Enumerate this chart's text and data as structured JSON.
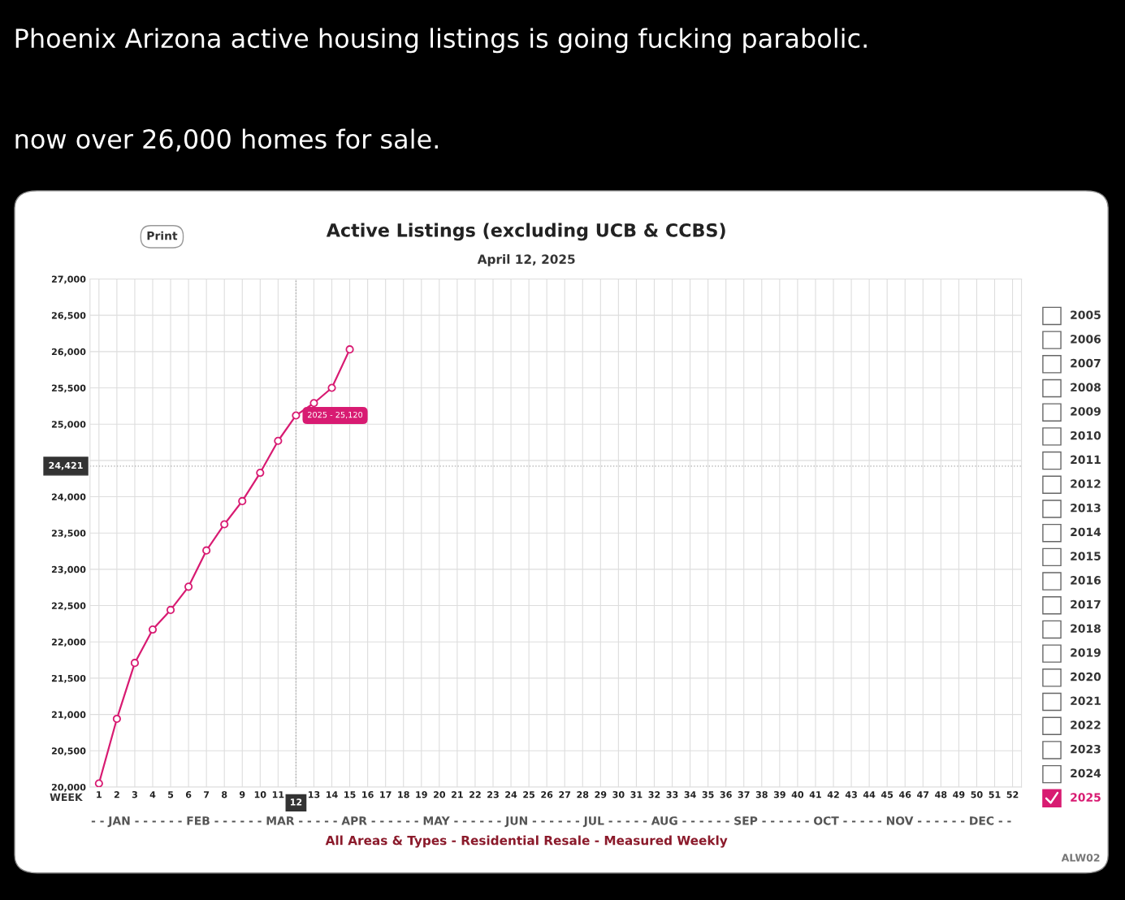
{
  "chart_data": {
    "type": "line",
    "title": "Active Listings (excluding UCB & CCBS)",
    "subtitle": "April 12, 2025",
    "xlabel": "WEEK",
    "x": [
      1,
      2,
      3,
      4,
      5,
      6,
      7,
      8,
      9,
      10,
      11,
      12,
      13,
      14,
      15
    ],
    "series": [
      {
        "name": "2025",
        "color": "#d81b72",
        "values": [
          20050,
          20940,
          21710,
          22170,
          22440,
          22760,
          23260,
          23620,
          23940,
          24330,
          24770,
          25120,
          25290,
          25500,
          26030
        ]
      }
    ],
    "xlim": [
      0.5,
      52.5
    ],
    "xticks": [
      1,
      2,
      3,
      4,
      5,
      6,
      7,
      8,
      9,
      10,
      11,
      {
        "value": 12,
        "label": null
      },
      13,
      14,
      15,
      16,
      17,
      18,
      19,
      20,
      21,
      22,
      23,
      24,
      25,
      26,
      27,
      28,
      29,
      30,
      31,
      32,
      33,
      34,
      35,
      36,
      37,
      38,
      39,
      40,
      41,
      42,
      43,
      44,
      45,
      46,
      47,
      48,
      49,
      50,
      51,
      52
    ],
    "ylim": [
      20000,
      27000
    ],
    "yticks": [
      {
        "value": 20000,
        "label": "20,000"
      },
      {
        "value": 20500,
        "label": "20,500"
      },
      {
        "value": 21000,
        "label": "21,000"
      },
      {
        "value": 21500,
        "label": "21,500"
      },
      {
        "value": 22000,
        "label": "22,000"
      },
      {
        "value": 22500,
        "label": "22,500"
      },
      {
        "value": 23000,
        "label": "23,000"
      },
      {
        "value": 23500,
        "label": "23,500"
      },
      {
        "value": 24000,
        "label": "24,000"
      },
      {
        "value": 24500,
        "label": null
      },
      {
        "value": 25000,
        "label": "25,000"
      },
      {
        "value": 25500,
        "label": "25,500"
      },
      {
        "value": 26000,
        "label": "26,000"
      },
      {
        "value": 26500,
        "label": "26,500"
      },
      {
        "value": 27000,
        "label": "27,000"
      }
    ],
    "grid": true,
    "marker": "circle",
    "line_style": "solid",
    "legend": "right",
    "ref_lines": [
      {
        "axis": "y",
        "value": 24421,
        "label": "24,421",
        "color": "#aaaaaa",
        "line_style": "dotted"
      },
      {
        "axis": "x",
        "value": 12,
        "label": "12",
        "color": "#aaaaaa",
        "line_style": "dotted"
      }
    ],
    "annotations": [
      "Phoenix Arizona active housing listings is going fucking parabolic.",
      "now over 26,000 homes for sale.",
      "Print",
      "- - JAN - - - - - - FEB - - - - - - MAR - - - - - APR - - - - - - MAY - - - - - - JUN - - - - - - JUL - - - - - AUG - - - - - - SEP - - - - - - OCT - - - - - NOV - - - - - - DEC - -",
      "All Areas & Types - Residential Resale - Measured Weekly",
      "ALW02",
      "2005",
      "2006",
      "2007",
      "2008",
      "2009",
      "2010",
      "2011",
      "2012",
      "2013",
      "2014",
      "2015",
      "2016",
      "2017",
      "2018",
      "2019",
      "2020",
      "2021",
      "2022",
      "2023",
      "2024",
      {
        "text": "2025 - 25,120",
        "x": 12,
        "y": 25120
      }
    ]
  }
}
